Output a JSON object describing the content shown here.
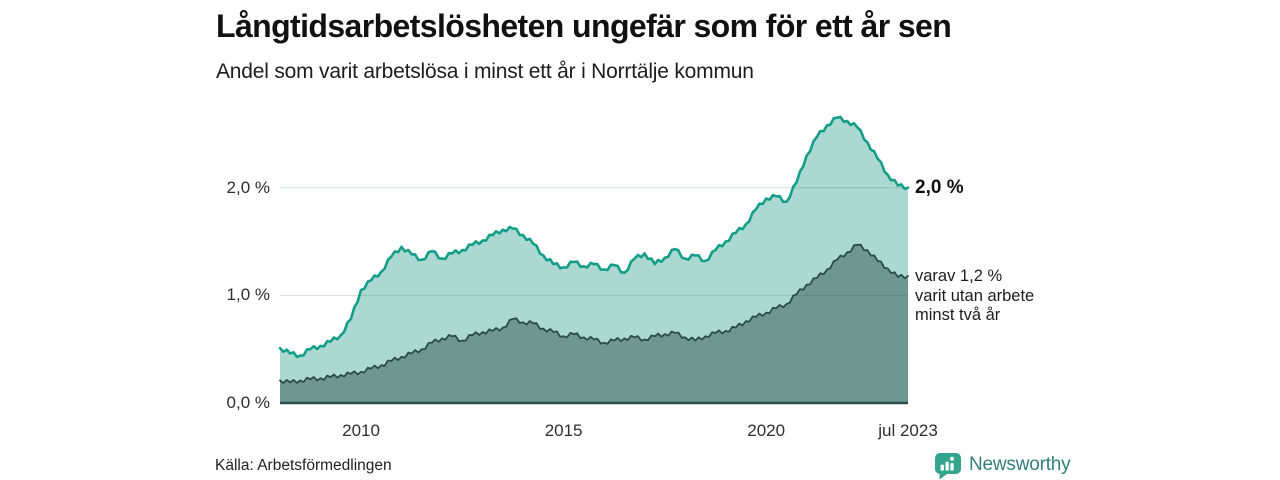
{
  "header": {
    "title": "Långtidsarbetslösheten ungefär som för ett år sen",
    "subtitle": "Andel som varit arbetslösa i minst ett år i Norrtälje kommun"
  },
  "annotations": {
    "series1_end_label": "2,0 %",
    "series2_end_lines": [
      "varav 1,2 %",
      "varit utan arbete",
      "minst två år"
    ]
  },
  "footer": {
    "source": "Källa: Arbetsförmedlingen",
    "brand": "Newsworthy"
  },
  "colors": {
    "series1_stroke": "#149e8a",
    "series1_fill": "#abd8d1",
    "series2_stroke": "#2b4d48",
    "series2_fill": "#6f9790",
    "gridline": "#d9dddc",
    "baseline": "#2d4f4b",
    "brand_teal": "#34a48e",
    "brand_text": "#337f79",
    "text": "#111111"
  },
  "chart_data": {
    "type": "area",
    "title": "Långtidsarbetslösheten ungefär som för ett år sen",
    "subtitle": "Andel som varit arbetslösa i minst ett år i Norrtälje kommun",
    "legend": "none",
    "grid": "horizontal",
    "xlim": [
      2008,
      2023.5
    ],
    "ylim": [
      0,
      2.72
    ],
    "x": [
      2008,
      2008.25,
      2008.5,
      2008.75,
      2009,
      2009.25,
      2009.5,
      2009.75,
      2010,
      2010.25,
      2010.5,
      2010.75,
      2011,
      2011.25,
      2011.5,
      2011.75,
      2012,
      2012.25,
      2012.5,
      2012.75,
      2013,
      2013.25,
      2013.5,
      2013.75,
      2014,
      2014.25,
      2014.5,
      2014.75,
      2015,
      2015.25,
      2015.5,
      2015.75,
      2016,
      2016.25,
      2016.5,
      2016.75,
      2017,
      2017.25,
      2017.5,
      2017.75,
      2018,
      2018.25,
      2018.5,
      2018.75,
      2019,
      2019.25,
      2019.5,
      2019.75,
      2020,
      2020.25,
      2020.5,
      2020.75,
      2021,
      2021.25,
      2021.5,
      2021.75,
      2022,
      2022.25,
      2022.5,
      2022.75,
      2023,
      2023.25,
      2023.5
    ],
    "series": [
      {
        "name": "Arbetslösa minst ett år",
        "end_value_label": "2,0 %",
        "values": [
          0.51,
          0.46,
          0.44,
          0.5,
          0.53,
          0.57,
          0.63,
          0.78,
          1.05,
          1.14,
          1.22,
          1.36,
          1.45,
          1.38,
          1.33,
          1.41,
          1.34,
          1.39,
          1.42,
          1.47,
          1.51,
          1.56,
          1.61,
          1.62,
          1.56,
          1.48,
          1.37,
          1.29,
          1.26,
          1.31,
          1.27,
          1.29,
          1.24,
          1.28,
          1.21,
          1.34,
          1.39,
          1.29,
          1.35,
          1.43,
          1.34,
          1.37,
          1.32,
          1.42,
          1.5,
          1.58,
          1.66,
          1.8,
          1.9,
          1.92,
          1.87,
          2.05,
          2.3,
          2.47,
          2.58,
          2.65,
          2.62,
          2.56,
          2.42,
          2.27,
          2.12,
          2.02,
          2.0
        ]
      },
      {
        "name": "varav utan arbete minst två år",
        "end_value_label": "1,2 %",
        "values": [
          0.21,
          0.19,
          0.21,
          0.22,
          0.23,
          0.24,
          0.26,
          0.27,
          0.29,
          0.32,
          0.35,
          0.39,
          0.43,
          0.46,
          0.5,
          0.56,
          0.6,
          0.62,
          0.58,
          0.63,
          0.66,
          0.67,
          0.7,
          0.78,
          0.75,
          0.74,
          0.69,
          0.66,
          0.62,
          0.64,
          0.61,
          0.59,
          0.56,
          0.58,
          0.6,
          0.61,
          0.59,
          0.62,
          0.64,
          0.65,
          0.61,
          0.58,
          0.62,
          0.65,
          0.67,
          0.7,
          0.76,
          0.8,
          0.84,
          0.88,
          0.92,
          1.01,
          1.1,
          1.16,
          1.24,
          1.33,
          1.4,
          1.47,
          1.42,
          1.32,
          1.25,
          1.17,
          1.18
        ]
      }
    ],
    "yticks": [
      {
        "value": 0,
        "label": "0,0 %"
      },
      {
        "value": 1,
        "label": "1,0 %"
      },
      {
        "value": 2,
        "label": "2,0 %"
      }
    ],
    "xticks": [
      {
        "value": 2010,
        "label": "2010"
      },
      {
        "value": 2015,
        "label": "2015"
      },
      {
        "value": 2020,
        "label": "2020"
      },
      {
        "value": 2023.5,
        "label": "jul 2023"
      }
    ]
  }
}
